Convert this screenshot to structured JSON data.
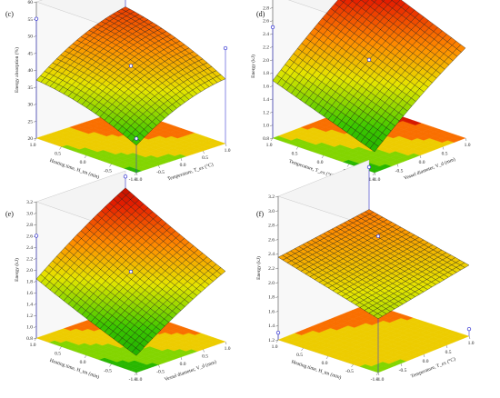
{
  "chart_data": [
    {
      "panel_label": "(c)",
      "type": "surface3d",
      "zlabel": "Energy absorption (%)",
      "xlabel": "Heating time, H_tm (min)",
      "ylabel": "Temperature, T_ex (°C)",
      "zticks": [
        "20",
        "25",
        "30",
        "35",
        "40",
        "45",
        "50",
        "55",
        "60"
      ],
      "xticks": [
        "-1.0",
        "-0.5",
        "0.0",
        "0.5",
        "1.0"
      ],
      "yticks": [
        "-1.0",
        "-0.5",
        "0.0",
        "0.5",
        "1.0"
      ],
      "zlim": [
        20,
        60
      ],
      "surface": {
        "b0": 42,
        "bx": 6,
        "by": 5,
        "bxx": -2,
        "byy": -1.5,
        "bxy": 0.5
      },
      "points": [
        {
          "x": -1,
          "y": 1,
          "z": 55
        },
        {
          "x": 1,
          "y": 1,
          "z": 60
        },
        {
          "x": 0,
          "y": 0,
          "z": 42
        },
        {
          "x": -1,
          "y": -1,
          "z": 30
        },
        {
          "x": 1,
          "y": -1,
          "z": 48
        }
      ]
    },
    {
      "panel_label": "(d)",
      "type": "surface3d",
      "zlabel": "Energy (kJ)",
      "xlabel": "Temperature, T_ex (°C)",
      "ylabel": "Vessel diameter, V_d (mm)",
      "zticks": [
        "0.8",
        "1.0",
        "1.2",
        "1.4",
        "1.6",
        "1.8",
        "2.0",
        "2.2",
        "2.4",
        "2.6",
        "2.8",
        "3.0"
      ],
      "xticks": [
        "-1.0",
        "-0.5",
        "0.0",
        "0.5",
        "1.0"
      ],
      "yticks": [
        "-1.0",
        "-0.5",
        "0.0",
        "0.5",
        "1.0"
      ],
      "zlim": [
        0.8,
        3.0
      ],
      "surface": {
        "b0": 2.0,
        "bx": 0.55,
        "by": 0.3,
        "bxx": -0.05,
        "byy": 0.0,
        "bxy": 0.02
      },
      "points": [
        {
          "x": -1,
          "y": 1,
          "z": 2.5
        },
        {
          "x": 0,
          "y": 0,
          "z": 2.0
        },
        {
          "x": 1,
          "y": 1,
          "z": 2.9
        }
      ]
    },
    {
      "panel_label": "(e)",
      "type": "surface3d",
      "zlabel": "Energy (kJ)",
      "xlabel": "Heating time, H_tm (min)",
      "ylabel": "Vessel diameter, V_d (mm)",
      "zticks": [
        "0.8",
        "1.0",
        "1.2",
        "1.4",
        "1.6",
        "1.8",
        "2.0",
        "2.2",
        "2.4",
        "2.6",
        "2.8",
        "3.0",
        "3.2"
      ],
      "xticks": [
        "-1.0",
        "-0.5",
        "0.0",
        "0.5",
        "1.0"
      ],
      "yticks": [
        "-1.0",
        "-0.5",
        "0.0",
        "0.5",
        "1.0"
      ],
      "zlim": [
        0.8,
        3.2
      ],
      "surface": {
        "b0": 2.0,
        "bx": 0.5,
        "by": 0.4,
        "bxx": -0.05,
        "byy": 0.02,
        "bxy": 0.03
      },
      "points": [
        {
          "x": -1,
          "y": 1,
          "z": 2.6
        },
        {
          "x": 0,
          "y": 0,
          "z": 2.0
        },
        {
          "x": 1,
          "y": 1,
          "z": 3.1
        }
      ]
    },
    {
      "panel_label": "(f)",
      "type": "surface3d",
      "zlabel": "Energy (kJ)",
      "xlabel": "Heating time, H_tm (min)",
      "ylabel": "Temperature, T_ex (°C)",
      "zticks": [
        "1.2",
        "1.4",
        "1.6",
        "1.8",
        "2.0",
        "2.2",
        "2.4",
        "2.6",
        "2.8",
        "3.0",
        "3.2"
      ],
      "xticks": [
        "-1.0",
        "-0.5",
        "0.0",
        "0.5",
        "1.0"
      ],
      "yticks": [
        "-1.0",
        "-0.5",
        "0.0",
        "0.5",
        "1.0"
      ],
      "zlim": [
        1.2,
        3.2
      ],
      "surface": {
        "b0": 2.25,
        "bx": 0.1,
        "by": 0.18,
        "bxx": 0.0,
        "byy": 0.0,
        "bxy": -0.02
      },
      "points": [
        {
          "x": -1,
          "y": -1,
          "z": 3.1
        },
        {
          "x": 1,
          "y": 1,
          "z": 3.1
        },
        {
          "x": -1,
          "y": 1,
          "z": 1.3
        },
        {
          "x": 1,
          "y": -1,
          "z": 1.3
        }
      ]
    }
  ]
}
